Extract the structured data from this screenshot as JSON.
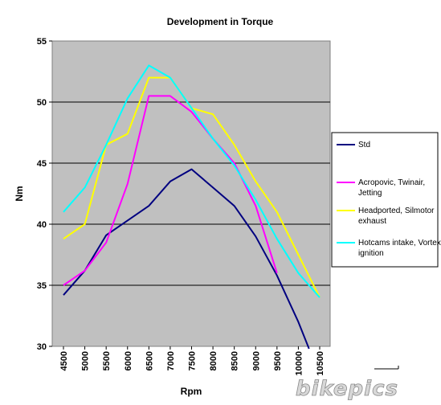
{
  "chart_data": {
    "type": "line",
    "title": "Development in Torque",
    "xlabel": "Rpm",
    "ylabel": "Nm",
    "categories": [
      "4500",
      "5000",
      "5500",
      "6000",
      "6500",
      "7000",
      "7500",
      "8000",
      "8500",
      "9000",
      "9500",
      "10000",
      "10500"
    ],
    "ylim": [
      30,
      55
    ],
    "yticks": [
      30,
      35,
      40,
      45,
      50,
      55
    ],
    "grid": true,
    "legend_position": "right",
    "plot_background": "#c0c0c0",
    "series": [
      {
        "name": "Std",
        "color": "#000080",
        "x": [
          4500,
          5000,
          5500,
          6000,
          6500,
          7000,
          7500,
          8000,
          8500,
          9000,
          9500,
          10000,
          10250
        ],
        "y": [
          34.2,
          36.2,
          39.1,
          40.3,
          41.5,
          43.5,
          44.5,
          43.0,
          41.5,
          39.0,
          35.8,
          32.0,
          29.8
        ]
      },
      {
        "name": "Acropovic, Twinair, Jetting",
        "color": "#ff00ff",
        "x": [
          4500,
          5000,
          5500,
          6000,
          6500,
          7000,
          7500,
          8000,
          8500,
          9000,
          9500
        ],
        "y": [
          35.0,
          36.2,
          38.5,
          43.3,
          50.5,
          50.5,
          49.2,
          47.0,
          45.0,
          41.5,
          36.0
        ]
      },
      {
        "name": "Headported, Silmotor exhaust",
        "color": "#ffff00",
        "x": [
          4500,
          5000,
          5500,
          6000,
          6500,
          7000,
          7500,
          8000,
          8500,
          9000,
          9500,
          10000,
          10500
        ],
        "y": [
          38.8,
          40.0,
          46.5,
          47.4,
          52.0,
          52.0,
          49.5,
          49.0,
          46.5,
          43.5,
          41.0,
          37.5,
          34.0
        ]
      },
      {
        "name": "Hotcams intake, Vortex ignition",
        "color": "#00ffff",
        "x": [
          4500,
          5000,
          5500,
          6000,
          6500,
          7000,
          7500,
          8000,
          8500,
          9000,
          9500,
          10000,
          10500
        ],
        "y": [
          41.0,
          43.0,
          46.5,
          50.3,
          53.0,
          52.0,
          49.5,
          47.0,
          44.8,
          42.0,
          38.8,
          36.0,
          34.0
        ]
      }
    ]
  },
  "watermark": "bikepics"
}
